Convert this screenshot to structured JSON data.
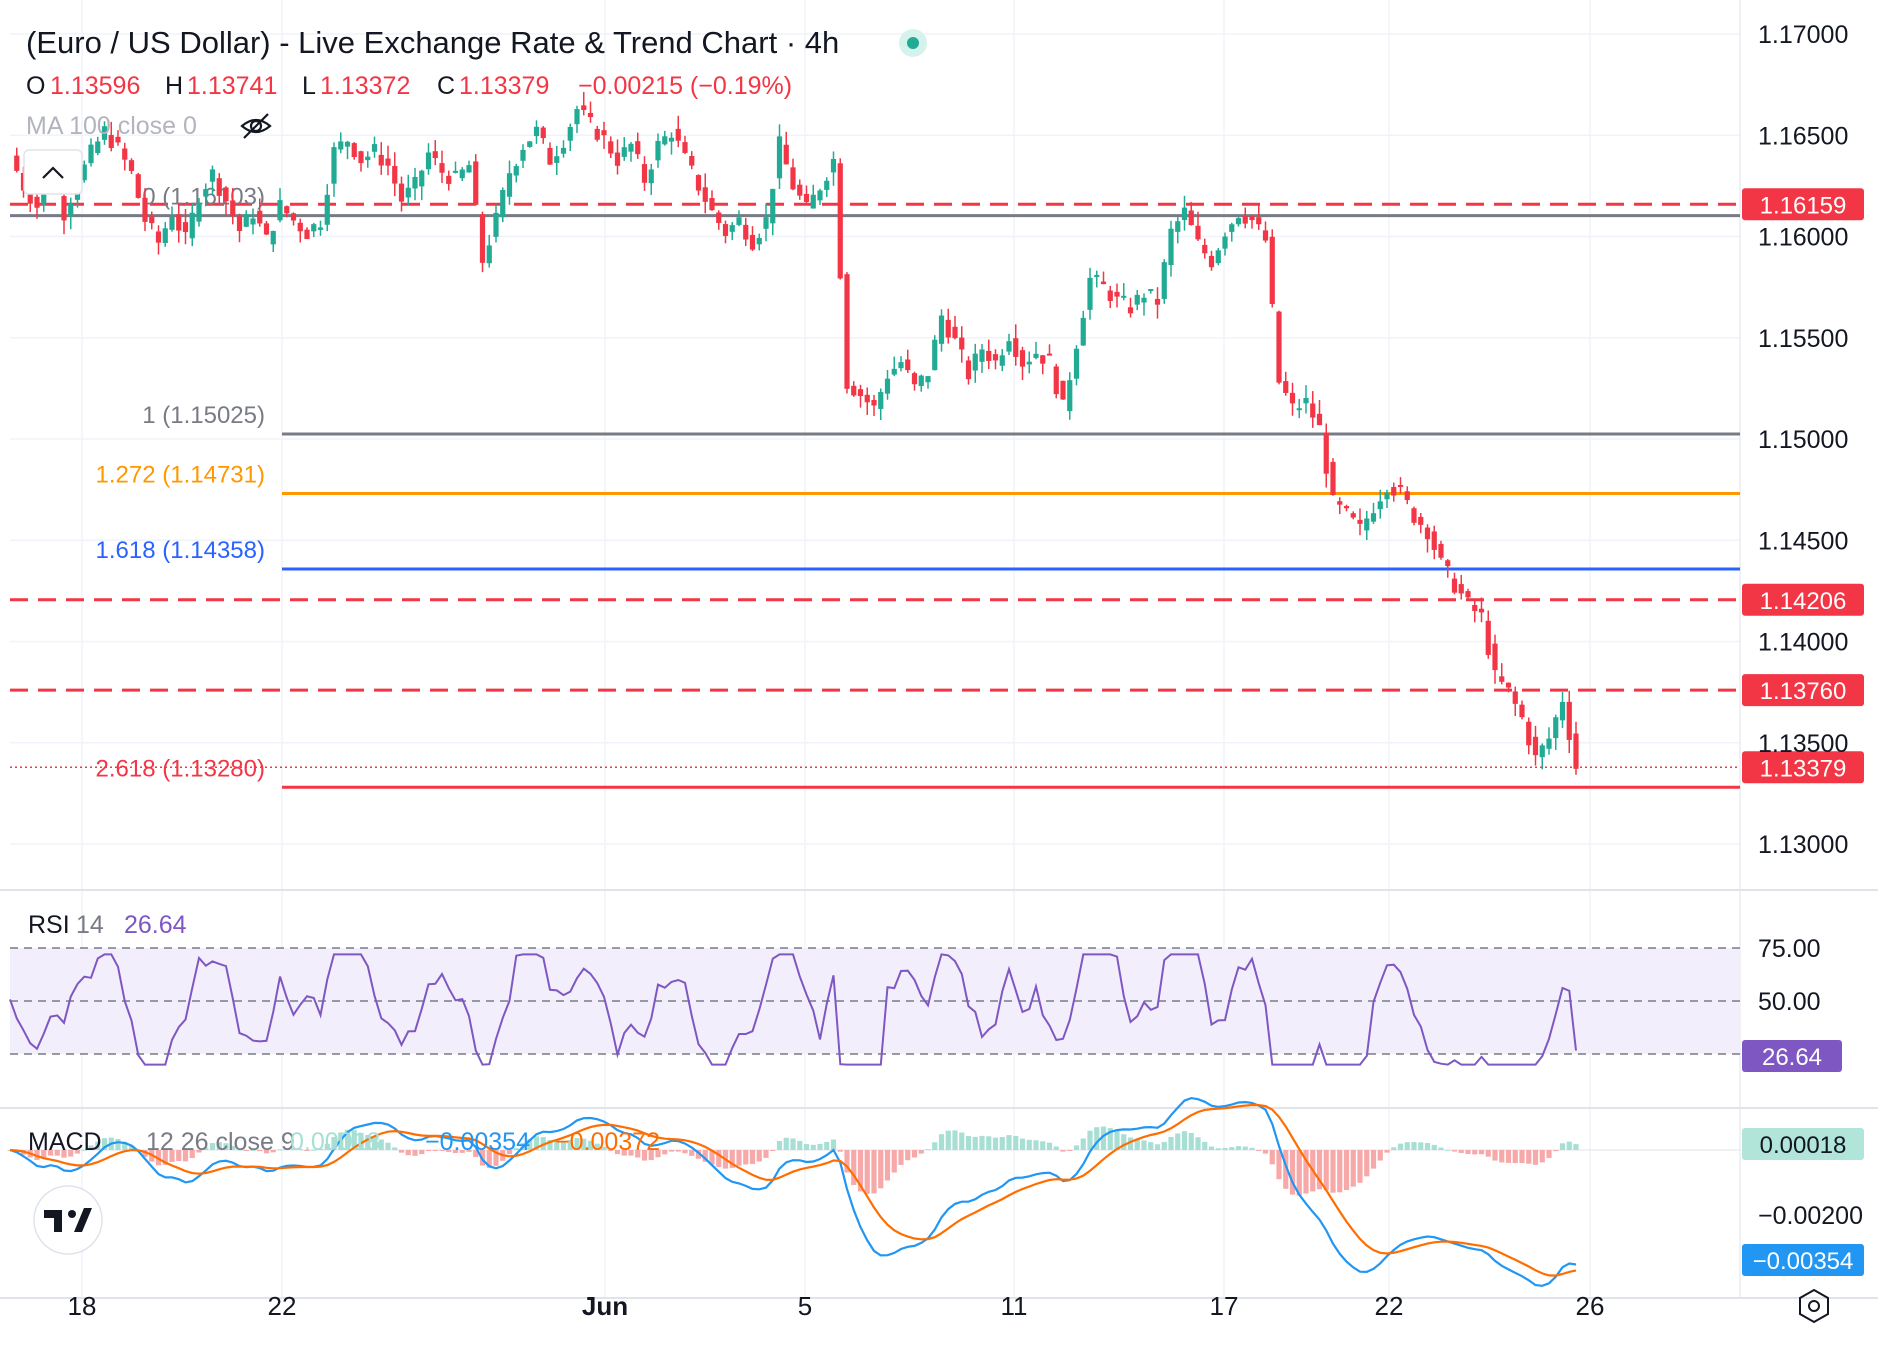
{
  "header": {
    "title": "(Euro / US Dollar) - Live Exchange Rate & Trend Chart · 4h",
    "ohlc": {
      "o_label": "O",
      "o": "1.13596",
      "h_label": "H",
      "h": "1.13741",
      "l_label": "L",
      "l": "1.13372",
      "c_label": "C",
      "c": "1.13379",
      "change": "−0.00215 (−0.19%)"
    },
    "ma_legend": "MA 100 close 0",
    "rsi_legend": {
      "name": "RSI",
      "period": "14",
      "value": "26.64"
    },
    "macd_legend": {
      "name": "MACD",
      "params": "12 26 close 9",
      "hist": "0.00018",
      "macd": "−0.00354",
      "signal": "−0.00372"
    }
  },
  "colors": {
    "up": "#22ab94",
    "down": "#f23645",
    "fib_gray": "#787b86",
    "fib_orange": "#ff9800",
    "fib_blue": "#2962ff",
    "fib_red": "#f23645",
    "rsi": "#7e57c2",
    "rsi_band": "#f3eefb",
    "macd": "#2196f3",
    "signal": "#ff6d00"
  },
  "chart_data": {
    "type": "candlestick",
    "symbol": "EUR/USD",
    "interval": "4h",
    "x_ticks": [
      "18",
      "22",
      "Jun",
      "5",
      "11",
      "17",
      "22",
      "26"
    ],
    "price_axis": {
      "ticks": [
        "1.17000",
        "1.16500",
        "1.16000",
        "1.15500",
        "1.15000",
        "1.14500",
        "1.14000",
        "1.13500",
        "1.13000"
      ],
      "ylim": [
        1.1272,
        1.1705
      ]
    },
    "horizontal_levels": [
      {
        "value": 1.16159,
        "label": "1.16159",
        "style": "dashed",
        "color": "#f23645"
      },
      {
        "value": 1.14206,
        "label": "1.14206",
        "style": "dashed",
        "color": "#f23645"
      },
      {
        "value": 1.1376,
        "label": "1.13760",
        "style": "dashed",
        "color": "#f23645"
      }
    ],
    "current_price": {
      "value": 1.13379,
      "label": "1.13379"
    },
    "fibonacci": [
      {
        "level": "0",
        "price": "1.16103",
        "label": "0 (1.16103)",
        "color": "#787b86"
      },
      {
        "level": "1",
        "price": "1.15025",
        "label": "1 (1.15025)",
        "color": "#787b86"
      },
      {
        "level": "1.272",
        "price": "1.14731",
        "label": "1.272 (1.14731)",
        "color": "#ff9800"
      },
      {
        "level": "1.618",
        "price": "1.14358",
        "label": "1.618 (1.14358)",
        "color": "#2962ff"
      },
      {
        "level": "2.618",
        "price": "1.13280",
        "label": "2.618 (1.13280)",
        "color": "#f23645"
      }
    ],
    "price_path": [
      [
        0,
        1.164
      ],
      [
        2,
        1.1625
      ],
      [
        4,
        1.1615
      ],
      [
        6,
        1.1632
      ],
      [
        8,
        1.1612
      ],
      [
        10,
        1.1627
      ],
      [
        12,
        1.1641
      ],
      [
        14,
        1.1652
      ],
      [
        16,
        1.1643
      ],
      [
        18,
        1.1631
      ],
      [
        20,
        1.1608
      ],
      [
        22,
        1.1597
      ],
      [
        24,
        1.1612
      ],
      [
        26,
        1.1598
      ],
      [
        28,
        1.1621
      ],
      [
        30,
        1.1631
      ],
      [
        32,
        1.1618
      ],
      [
        34,
        1.1603
      ],
      [
        36,
        1.1612
      ],
      [
        38,
        1.1598
      ],
      [
        40,
        1.1615
      ],
      [
        42,
        1.1608
      ],
      [
        44,
        1.1602
      ],
      [
        46,
        1.1608
      ],
      [
        48,
        1.1642
      ],
      [
        50,
        1.1648
      ],
      [
        52,
        1.1638
      ],
      [
        54,
        1.1642
      ],
      [
        56,
        1.1635
      ],
      [
        58,
        1.1618
      ],
      [
        60,
        1.1625
      ],
      [
        62,
        1.1641
      ],
      [
        64,
        1.1632
      ],
      [
        66,
        1.1628
      ],
      [
        68,
        1.1635
      ],
      [
        70,
        1.1588
      ],
      [
        72,
        1.1608
      ],
      [
        74,
        1.1632
      ],
      [
        76,
        1.1645
      ],
      [
        78,
        1.1652
      ],
      [
        80,
        1.1638
      ],
      [
        82,
        1.1648
      ],
      [
        84,
        1.1663
      ],
      [
        86,
        1.1655
      ],
      [
        88,
        1.1648
      ],
      [
        90,
        1.1638
      ],
      [
        92,
        1.1645
      ],
      [
        94,
        1.1628
      ],
      [
        96,
        1.1645
      ],
      [
        98,
        1.1652
      ],
      [
        100,
        1.1638
      ],
      [
        102,
        1.1625
      ],
      [
        104,
        1.1612
      ],
      [
        106,
        1.1602
      ],
      [
        108,
        1.1608
      ],
      [
        110,
        1.1598
      ],
      [
        112,
        1.1608
      ],
      [
        114,
        1.1645
      ],
      [
        116,
        1.1625
      ],
      [
        118,
        1.1613
      ],
      [
        120,
        1.1625
      ],
      [
        122,
        1.1638
      ],
      [
        124,
        1.1528
      ],
      [
        126,
        1.1522
      ],
      [
        128,
        1.1515
      ],
      [
        130,
        1.1532
      ],
      [
        132,
        1.1538
      ],
      [
        134,
        1.1525
      ],
      [
        136,
        1.1533
      ],
      [
        138,
        1.1561
      ],
      [
        140,
        1.1548
      ],
      [
        142,
        1.1532
      ],
      [
        144,
        1.1545
      ],
      [
        146,
        1.1538
      ],
      [
        148,
        1.1552
      ],
      [
        150,
        1.1538
      ],
      [
        152,
        1.1543
      ],
      [
        154,
        1.1538
      ],
      [
        156,
        1.1515
      ],
      [
        158,
        1.1548
      ],
      [
        160,
        1.1579
      ],
      [
        162,
        1.1575
      ],
      [
        164,
        1.1568
      ],
      [
        166,
        1.1565
      ],
      [
        168,
        1.1572
      ],
      [
        170,
        1.1568
      ],
      [
        172,
        1.1602
      ],
      [
        174,
        1.1612
      ],
      [
        176,
        1.1596
      ],
      [
        178,
        1.1588
      ],
      [
        180,
        1.1603
      ],
      [
        182,
        1.1612
      ],
      [
        184,
        1.1608
      ],
      [
        186,
        1.1598
      ],
      [
        188,
        1.1528
      ],
      [
        190,
        1.1515
      ],
      [
        192,
        1.1518
      ],
      [
        194,
        1.1505
      ],
      [
        196,
        1.1468
      ],
      [
        198,
        1.1462
      ],
      [
        200,
        1.1455
      ],
      [
        202,
        1.1467
      ],
      [
        204,
        1.1478
      ],
      [
        206,
        1.1473
      ],
      [
        208,
        1.1462
      ],
      [
        210,
        1.1455
      ],
      [
        212,
        1.1438
      ],
      [
        214,
        1.1428
      ],
      [
        216,
        1.1418
      ],
      [
        218,
        1.1412
      ],
      [
        220,
        1.1382
      ],
      [
        222,
        1.1375
      ],
      [
        224,
        1.1362
      ],
      [
        226,
        1.1342
      ],
      [
        228,
        1.1352
      ],
      [
        230,
        1.1372
      ],
      [
        232,
        1.1338
      ]
    ],
    "rsi": {
      "axis": [
        "75.00",
        "50.00"
      ],
      "band": [
        30,
        70
      ],
      "midline": 50,
      "current": "26.64"
    },
    "macd": {
      "axis": [
        "0.00018",
        "−0.00200",
        "−0.00354"
      ],
      "hist_current": "0.00018",
      "macd_current": "−0.00354"
    }
  }
}
